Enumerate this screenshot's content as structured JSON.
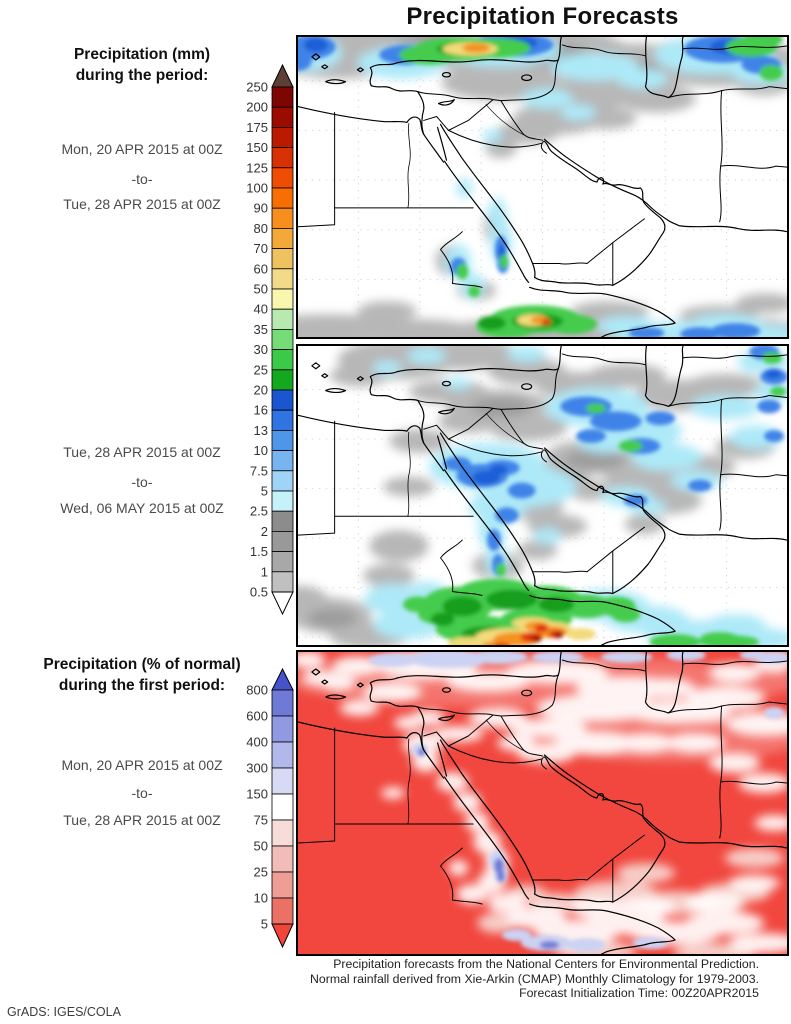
{
  "title": "Precipitation Forecasts",
  "left_column": {
    "block1": {
      "heading": [
        "Precipitation (mm)",
        "during the period:"
      ],
      "dates": [
        "Mon, 20 APR 2015 at 00Z",
        "-to-",
        "Tue, 28 APR 2015 at 00Z"
      ]
    },
    "block2": {
      "dates": [
        "Tue, 28 APR 2015 at 00Z",
        "-to-",
        "Wed, 06 MAY 2015 at 00Z"
      ]
    },
    "block3": {
      "heading": [
        "Precipitation (% of normal)",
        "during the first period:"
      ],
      "dates": [
        "Mon, 20 APR 2015 at 00Z",
        "-to-",
        "Tue, 28 APR 2015 at 00Z"
      ]
    }
  },
  "legend_mm": {
    "labels": [
      "250",
      "200",
      "175",
      "150",
      "125",
      "100",
      "90",
      "80",
      "70",
      "60",
      "50",
      "40",
      "35",
      "30",
      "25",
      "20",
      "16",
      "13",
      "10",
      "7.5",
      "5",
      "2.5",
      "2",
      "1.5",
      "1",
      "0.5"
    ],
    "colors": [
      "#7d0502",
      "#9c0b00",
      "#bb1a00",
      "#d73002",
      "#ef4c04",
      "#f76f02",
      "#f78e1e",
      "#f3a93a",
      "#eec35f",
      "#f2da88",
      "#f9f6ad",
      "#b8e9b0",
      "#77dc78",
      "#3bc94a",
      "#14a81f",
      "#1a56d0",
      "#2f74e0",
      "#4f95e8",
      "#77b4f0",
      "#a0d4f6",
      "#c4f1fa",
      "#8c8c8c",
      "#999999",
      "#a8a8a8",
      "#c0c0c0"
    ],
    "arrow_top_color": "#5c4037",
    "arrow_bottom_color": "#ffffff"
  },
  "legend_pct": {
    "labels": [
      "800",
      "600",
      "400",
      "300",
      "150",
      "75",
      "50",
      "25",
      "10",
      "5"
    ],
    "colors": [
      "#6f7ad7",
      "#9099e1",
      "#b2b8ea",
      "#d7daf4",
      "#ffffff",
      "#f8dcd9",
      "#f3bdb7",
      "#ef9e96",
      "#ec7165"
    ],
    "arrow_top_color": "#4753cd",
    "arrow_bottom_color": "#f2453a"
  },
  "map_colors": {
    "background_land_sea": "#ffffff",
    "outline": "#000000",
    "pct_panel_base_below_normal": "#f1473e"
  },
  "footer": {
    "lines": [
      "Precipitation forecasts from the National Centers for Environmental Prediction.",
      "Normal rainfall derived from Xie-Arkin (CMAP) Monthly Climatology for 1979-2003.",
      "Forecast Initialization Time: 00Z20APR2015"
    ]
  },
  "credit": "GrADS: IGES/COLA"
}
